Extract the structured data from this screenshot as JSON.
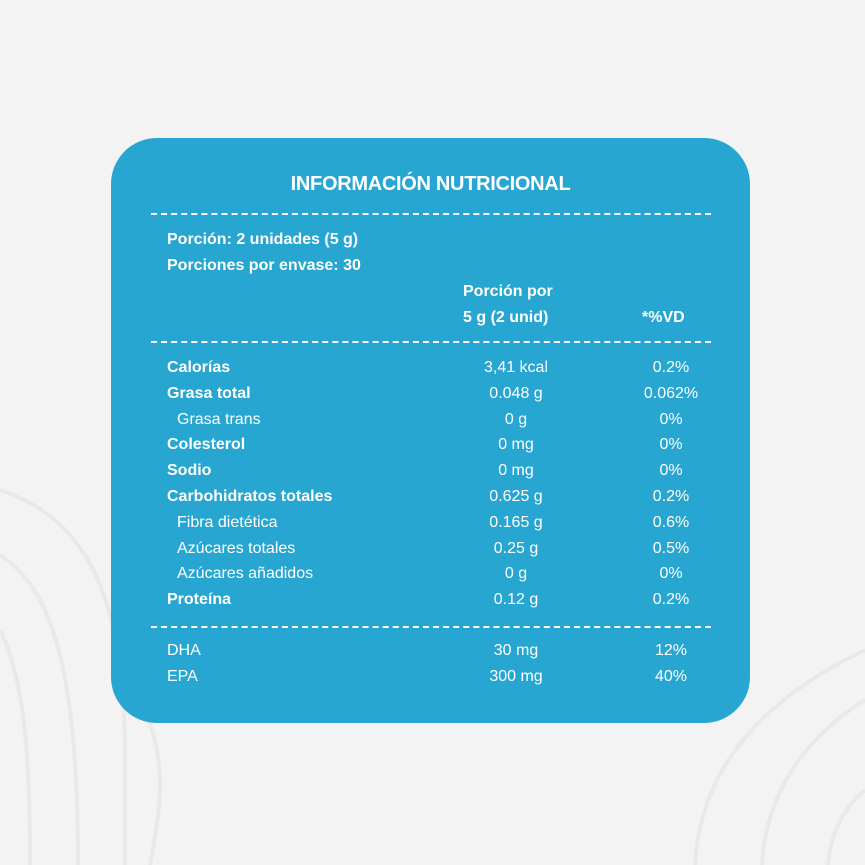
{
  "panel": {
    "title": "INFORMACIÓN NUTRICIONAL",
    "serving_size": "Porción: 2 unidades (5 g)",
    "servings_per_container": "Porciones por envase: 30",
    "column_headers": {
      "amount_line1": "Porción por",
      "amount_line2": "5 g (2 unid)",
      "daily_value": "*%VD"
    },
    "nutrients": [
      {
        "name": "Calorías",
        "amount": "3,41 kcal",
        "dv": "0.2%",
        "style": "bold"
      },
      {
        "name": "Grasa total",
        "amount": "0.048 g",
        "dv": "0.062%",
        "style": "bold"
      },
      {
        "name": "Grasa trans",
        "amount": "0 g",
        "dv": "0%",
        "style": "sub"
      },
      {
        "name": "Colesterol",
        "amount": "0 mg",
        "dv": "0%",
        "style": "bold"
      },
      {
        "name": "Sodio",
        "amount": "0 mg",
        "dv": "0%",
        "style": "bold"
      },
      {
        "name": "Carbohidratos totales",
        "amount": "0.625 g",
        "dv": "0.2%",
        "style": "bold"
      },
      {
        "name": "Fibra dietética",
        "amount": "0.165 g",
        "dv": "0.6%",
        "style": "sub"
      },
      {
        "name": "Azúcares totales",
        "amount": "0.25 g",
        "dv": "0.5%",
        "style": "sub"
      },
      {
        "name": "Azúcares añadidos",
        "amount": "0 g",
        "dv": "0%",
        "style": "sub"
      },
      {
        "name": "Proteína",
        "amount": "0.12 g",
        "dv": "0.2%",
        "style": "bold"
      }
    ],
    "extras": [
      {
        "name": "DHA",
        "amount": "30 mg",
        "dv": "12%"
      },
      {
        "name": "EPA",
        "amount": "300 mg",
        "dv": "40%"
      }
    ]
  },
  "colors": {
    "card": "#27a6d2",
    "background": "#f3f3f3",
    "text": "#ffffff"
  }
}
